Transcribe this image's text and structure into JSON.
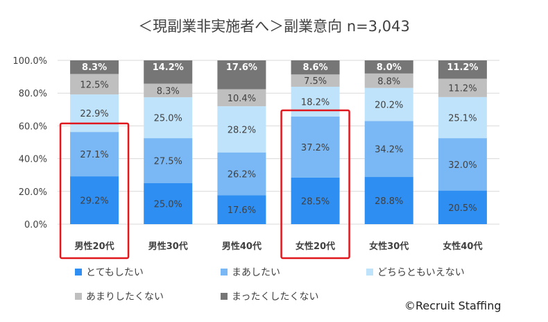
{
  "chart_data": {
    "type": "bar",
    "stacked": true,
    "title": "＜現副業非実施者へ＞副業意向 n=3,043",
    "categories": [
      "男性20代",
      "男性30代",
      "男性40代",
      "女性20代",
      "女性30代",
      "女性40代"
    ],
    "ylim": [
      0,
      100
    ],
    "yticks": [
      "0.0%",
      "20.0%",
      "40.0%",
      "60.0%",
      "80.0%",
      "100.0%"
    ],
    "grid": true,
    "legend_position": "bottom",
    "series": [
      {
        "name": "とてもしたい",
        "color": "#2e8ef2",
        "values": [
          29.2,
          25.0,
          17.6,
          28.5,
          28.8,
          20.5
        ],
        "labels": [
          "29.2%",
          "25.0%",
          "17.6%",
          "28.5%",
          "28.8%",
          "20.5%"
        ]
      },
      {
        "name": "まあしたい",
        "color": "#79b8f4",
        "values": [
          27.1,
          27.5,
          26.2,
          37.2,
          34.2,
          32.0
        ],
        "labels": [
          "27.1%",
          "27.5%",
          "26.2%",
          "37.2%",
          "34.2%",
          "32.0%"
        ]
      },
      {
        "name": "どちらともいえない",
        "color": "#bfe3fb",
        "values": [
          22.9,
          25.0,
          28.2,
          18.2,
          20.2,
          25.1
        ],
        "labels": [
          "22.9%",
          "25.0%",
          "28.2%",
          "18.2%",
          "20.2%",
          "25.1%"
        ]
      },
      {
        "name": "あまりしたくない",
        "color": "#bfbfbf",
        "values": [
          12.5,
          8.3,
          10.4,
          7.5,
          8.8,
          11.2
        ],
        "labels": [
          "12.5%",
          "8.3%",
          "10.4%",
          "7.5%",
          "8.8%",
          "11.2%"
        ]
      },
      {
        "name": "まったくしたくない",
        "color": "#767676",
        "values": [
          8.3,
          14.2,
          17.6,
          8.6,
          8.0,
          11.2
        ],
        "labels": [
          "8.3%",
          "14.2%",
          "17.6%",
          "8.6%",
          "8.0%",
          "11.2%"
        ]
      }
    ],
    "highlighted_categories": [
      "男性20代",
      "女性20代"
    ],
    "highlight_color": "#e0181e"
  },
  "credit": "©Recruit Staffing"
}
